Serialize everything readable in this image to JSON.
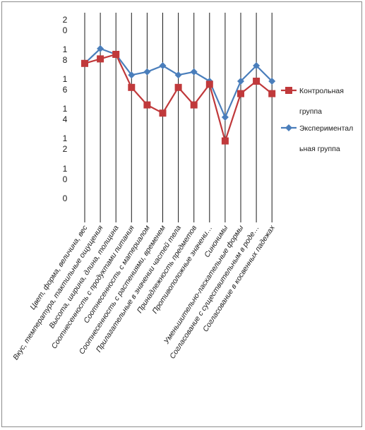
{
  "chart_data": {
    "type": "line",
    "categories": [
      "Цвет, форма, величина, вес",
      "Вкус, температура, тактильные ощущения",
      "Высота, ширина, длина, толщина",
      "Соотнесенность с продуктами питания",
      "Соотнесенность с материалом",
      "Соотнесенность с растениями, временем",
      "Прилагательные в значении частей тела",
      "Принадлежность предметов",
      "Противоположные значени…",
      "Синонимы",
      "Уменьшительно-ласкательные формы",
      "Согласование с существительным в роде…",
      "Согласование в косвенных падежах"
    ],
    "y_tick_labels": [
      {
        "line1": "0",
        "line2": ""
      },
      {
        "line1": "1",
        "line2": "0"
      },
      {
        "line1": "1",
        "line2": "2"
      },
      {
        "line1": "1",
        "line2": "4"
      },
      {
        "line1": "1",
        "line2": "6"
      },
      {
        "line1": "1",
        "line2": "8"
      },
      {
        "line1": "2",
        "line2": "0"
      }
    ],
    "ylim": [
      0,
      20
    ],
    "grid": "vertical",
    "legend_position": "right",
    "series": [
      {
        "name": "Контрольная группа",
        "color": "#c0393b",
        "marker": "square",
        "values": [
          17.2,
          17.6,
          18.0,
          16.3,
          15.6,
          15.2,
          16.3,
          15.6,
          16.4,
          14.4,
          16.1,
          16.5,
          16.1
        ]
      },
      {
        "name": "Экспериментальная группа",
        "color": "#4a7ebb",
        "marker": "diamond",
        "values": [
          17.2,
          18.3,
          18.0,
          16.7,
          16.8,
          17.0,
          16.7,
          16.8,
          16.5,
          15.0,
          16.5,
          17.0,
          16.5
        ]
      }
    ],
    "legend_text": [
      {
        "line1": "Контрольная",
        "line2": "группа"
      },
      {
        "line1": "Экспериментал",
        "line2": "ьная группа"
      }
    ]
  }
}
